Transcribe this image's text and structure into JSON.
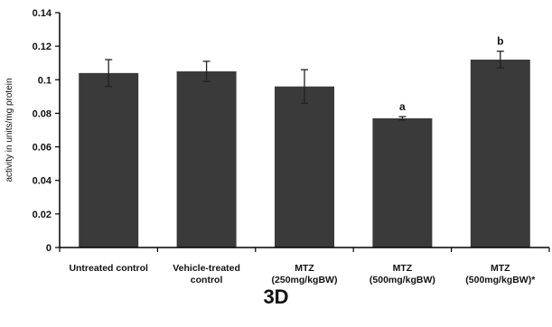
{
  "chart_data": {
    "type": "bar",
    "categories": [
      [
        "Untreated control"
      ],
      [
        "Vehicle-treated",
        "control"
      ],
      [
        "MTZ",
        "(250mg/kgBW)"
      ],
      [
        "MTZ",
        "(500mg/kgBW)"
      ],
      [
        "MTZ",
        "(500mg/kgBW)*"
      ]
    ],
    "values": [
      0.104,
      0.105,
      0.096,
      0.077,
      0.112
    ],
    "errors": [
      0.008,
      0.006,
      0.01,
      0.001,
      0.005
    ],
    "data_labels": [
      "",
      "",
      "",
      "a",
      "b"
    ],
    "ylabel": "activity in units/mg protein",
    "ylim": [
      0,
      0.14
    ],
    "yticks": [
      0,
      0.02,
      0.04,
      0.06,
      0.08,
      0.1,
      0.12,
      0.14
    ],
    "ytick_labels": [
      "0",
      "0.02",
      "0.04",
      "0.06",
      "0.08",
      "0.1",
      "0.12",
      "0.14"
    ],
    "grid": false,
    "bar_color": "#3a3a3a"
  },
  "panel_label": "3D"
}
